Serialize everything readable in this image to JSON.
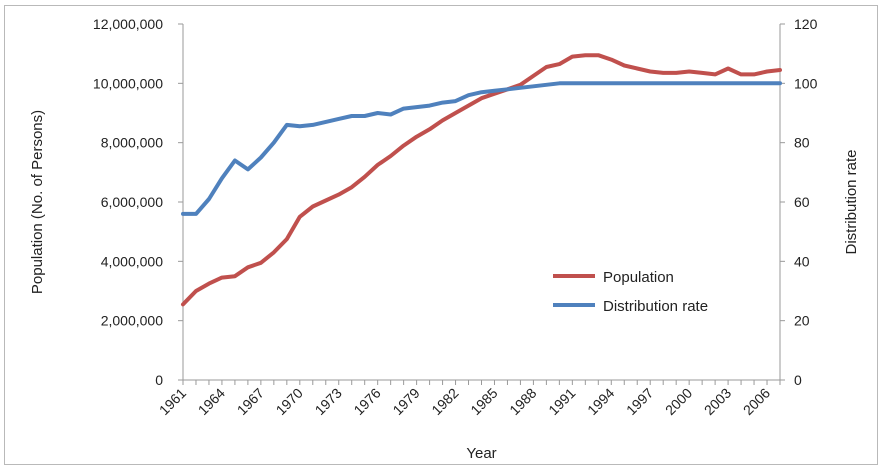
{
  "chart_data": {
    "type": "line",
    "xlabel": "Year",
    "ylabel": "Population (No. of Persons)",
    "y2label": "Distribution rate",
    "ylim": [
      0,
      12000000
    ],
    "y2lim": [
      0,
      120
    ],
    "yticks": [
      "0",
      "2,000,000",
      "4,000,000",
      "6,000,000",
      "8,000,000",
      "10,000,000",
      "12,000,000"
    ],
    "y2ticks": [
      "0",
      "20",
      "40",
      "60",
      "80",
      "100",
      "120"
    ],
    "xtick_labels": [
      "1961",
      "1964",
      "1967",
      "1970",
      "1973",
      "1976",
      "1979",
      "1982",
      "1985",
      "1988",
      "1991",
      "1994",
      "1997",
      "2000",
      "2003",
      "2006"
    ],
    "x": [
      1961,
      1962,
      1963,
      1964,
      1965,
      1966,
      1967,
      1968,
      1969,
      1970,
      1971,
      1972,
      1973,
      1974,
      1975,
      1976,
      1977,
      1978,
      1979,
      1980,
      1981,
      1982,
      1983,
      1984,
      1985,
      1986,
      1987,
      1988,
      1989,
      1990,
      1991,
      1992,
      1993,
      1994,
      1995,
      1996,
      1997,
      1998,
      1999,
      2000,
      2001,
      2002,
      2003,
      2004,
      2005,
      2006,
      2007
    ],
    "series": [
      {
        "name": "Population",
        "axis": "left",
        "color": "#c0504d",
        "values": [
          2550000,
          3000000,
          3250000,
          3450000,
          3500000,
          3800000,
          3950000,
          4300000,
          4750000,
          5500000,
          5850000,
          6050000,
          6250000,
          6500000,
          6850000,
          7250000,
          7550000,
          7900000,
          8200000,
          8450000,
          8750000,
          9000000,
          9250000,
          9500000,
          9650000,
          9800000,
          9950000,
          10250000,
          10550000,
          10650000,
          10900000,
          10950000,
          10950000,
          10800000,
          10600000,
          10500000,
          10400000,
          10350000,
          10350000,
          10400000,
          10350000,
          10300000,
          10500000,
          10300000,
          10300000,
          10400000,
          10450000
        ]
      },
      {
        "name": "Distribution rate",
        "axis": "right",
        "color": "#4f81bd",
        "values": [
          56,
          56,
          61,
          68,
          74,
          71,
          75,
          80,
          86,
          85.5,
          86,
          87,
          88,
          89,
          89,
          90,
          89.5,
          91.5,
          92,
          92.5,
          93.5,
          94,
          96,
          97,
          97.5,
          98,
          98.5,
          99,
          99.5,
          100,
          100,
          100,
          100,
          100,
          100,
          100,
          100,
          100,
          100,
          100,
          100,
          100,
          100,
          100,
          100,
          100,
          100
        ]
      }
    ],
    "legend": "inside-right"
  }
}
